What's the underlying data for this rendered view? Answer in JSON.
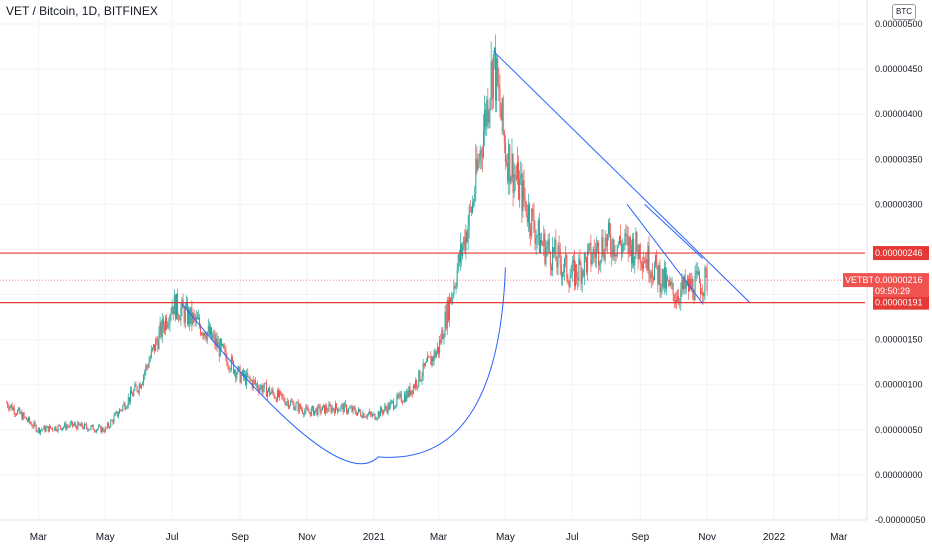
{
  "header": {
    "title": "VET / Bitcoin, 1D, BITFINEX",
    "currency": "BTC"
  },
  "colors": {
    "up": "#26a69a",
    "down": "#ef5350",
    "level_line": "#e53935",
    "trend_line": "#2962ff",
    "grid": "#f0f3fa"
  },
  "chart_data": {
    "type": "candlestick",
    "symbol": "VETBTC",
    "interval": "1D",
    "exchange": "BITFINEX",
    "y_ticks": [
      "0.00000500",
      "0.00000450",
      "0.00000400",
      "0.00000350",
      "0.00000300",
      "0.00000250",
      "0.00000200",
      "0.00000150",
      "0.00000100",
      "0.00000050",
      "0.00000000",
      "-0.00000050"
    ],
    "y_tick_values": [
      5e-06,
      4.5e-06,
      4e-06,
      3.5e-06,
      3e-06,
      2.5e-06,
      2e-06,
      1.5e-06,
      1e-06,
      5e-07,
      0,
      -5e-07
    ],
    "ylim": [
      -5e-07,
      5e-06
    ],
    "x_ticks": [
      "Mar",
      "May",
      "Jul",
      "Sep",
      "Nov",
      "2021",
      "Mar",
      "May",
      "Jul",
      "Sep",
      "Nov",
      "2022",
      "Mar"
    ],
    "x_tick_dates": [
      "2020-03-01",
      "2020-05-01",
      "2020-07-01",
      "2020-09-01",
      "2020-11-01",
      "2021-01-01",
      "2021-03-01",
      "2021-05-01",
      "2021-07-01",
      "2021-09-01",
      "2021-11-01",
      "2022-01-01",
      "2022-03-01"
    ],
    "xlim": [
      "2020-01-26",
      "2022-03-25"
    ],
    "monthly_close": [
      {
        "date": "2020-02-01",
        "value": 8e-07
      },
      {
        "date": "2020-03-01",
        "value": 5e-07
      },
      {
        "date": "2020-04-01",
        "value": 5.5e-07
      },
      {
        "date": "2020-05-01",
        "value": 5e-07
      },
      {
        "date": "2020-06-01",
        "value": 1e-06
      },
      {
        "date": "2020-07-01",
        "value": 1.9e-06
      },
      {
        "date": "2020-08-01",
        "value": 1.6e-06
      },
      {
        "date": "2020-09-01",
        "value": 1.1e-06
      },
      {
        "date": "2020-10-01",
        "value": 9e-07
      },
      {
        "date": "2020-11-01",
        "value": 7e-07
      },
      {
        "date": "2020-12-01",
        "value": 7.5e-07
      },
      {
        "date": "2021-01-01",
        "value": 6.5e-07
      },
      {
        "date": "2021-02-01",
        "value": 9e-07
      },
      {
        "date": "2021-03-01",
        "value": 1.4e-06
      },
      {
        "date": "2021-04-01",
        "value": 3e-06
      },
      {
        "date": "2021-04-20",
        "value": 4.6e-06
      },
      {
        "date": "2021-05-01",
        "value": 3.6e-06
      },
      {
        "date": "2021-06-01",
        "value": 2.6e-06
      },
      {
        "date": "2021-07-01",
        "value": 2.2e-06
      },
      {
        "date": "2021-08-01",
        "value": 2.6e-06
      },
      {
        "date": "2021-09-01",
        "value": 2.5e-06
      },
      {
        "date": "2021-10-01",
        "value": 2e-06
      },
      {
        "date": "2021-11-01",
        "value": 2.16e-06
      }
    ],
    "price_tag": {
      "symbol": "VETBTC",
      "value": "0.00000216",
      "countdown": "09:50:29",
      "level": 2.16e-06
    },
    "levels": [
      {
        "label": "0.00000246",
        "value": 2.46e-06
      },
      {
        "label": "0.00000191",
        "value": 1.91e-06
      }
    ],
    "drawings": {
      "descending_trendline": {
        "from": {
          "date": "2021-04-20",
          "value": 4.7e-06
        },
        "to": {
          "date": "2021-12-10",
          "value": 1.91e-06
        }
      },
      "bowl_curve": {
        "from": {
          "date": "2020-07-10",
          "value": 1.9e-06
        },
        "bottom": {
          "date": "2021-01-05",
          "value": 2e-07
        },
        "to": {
          "date": "2021-05-01",
          "value": 2.3e-06
        }
      },
      "wedge_upper": {
        "from": {
          "date": "2021-09-05",
          "value": 3e-06
        },
        "to": {
          "date": "2021-10-28",
          "value": 2.4e-06
        }
      },
      "wedge_lower": {
        "from": {
          "date": "2021-08-20",
          "value": 3e-06
        },
        "to": {
          "date": "2021-10-28",
          "value": 1.9e-06
        }
      }
    },
    "grid": true,
    "legend": "none"
  }
}
